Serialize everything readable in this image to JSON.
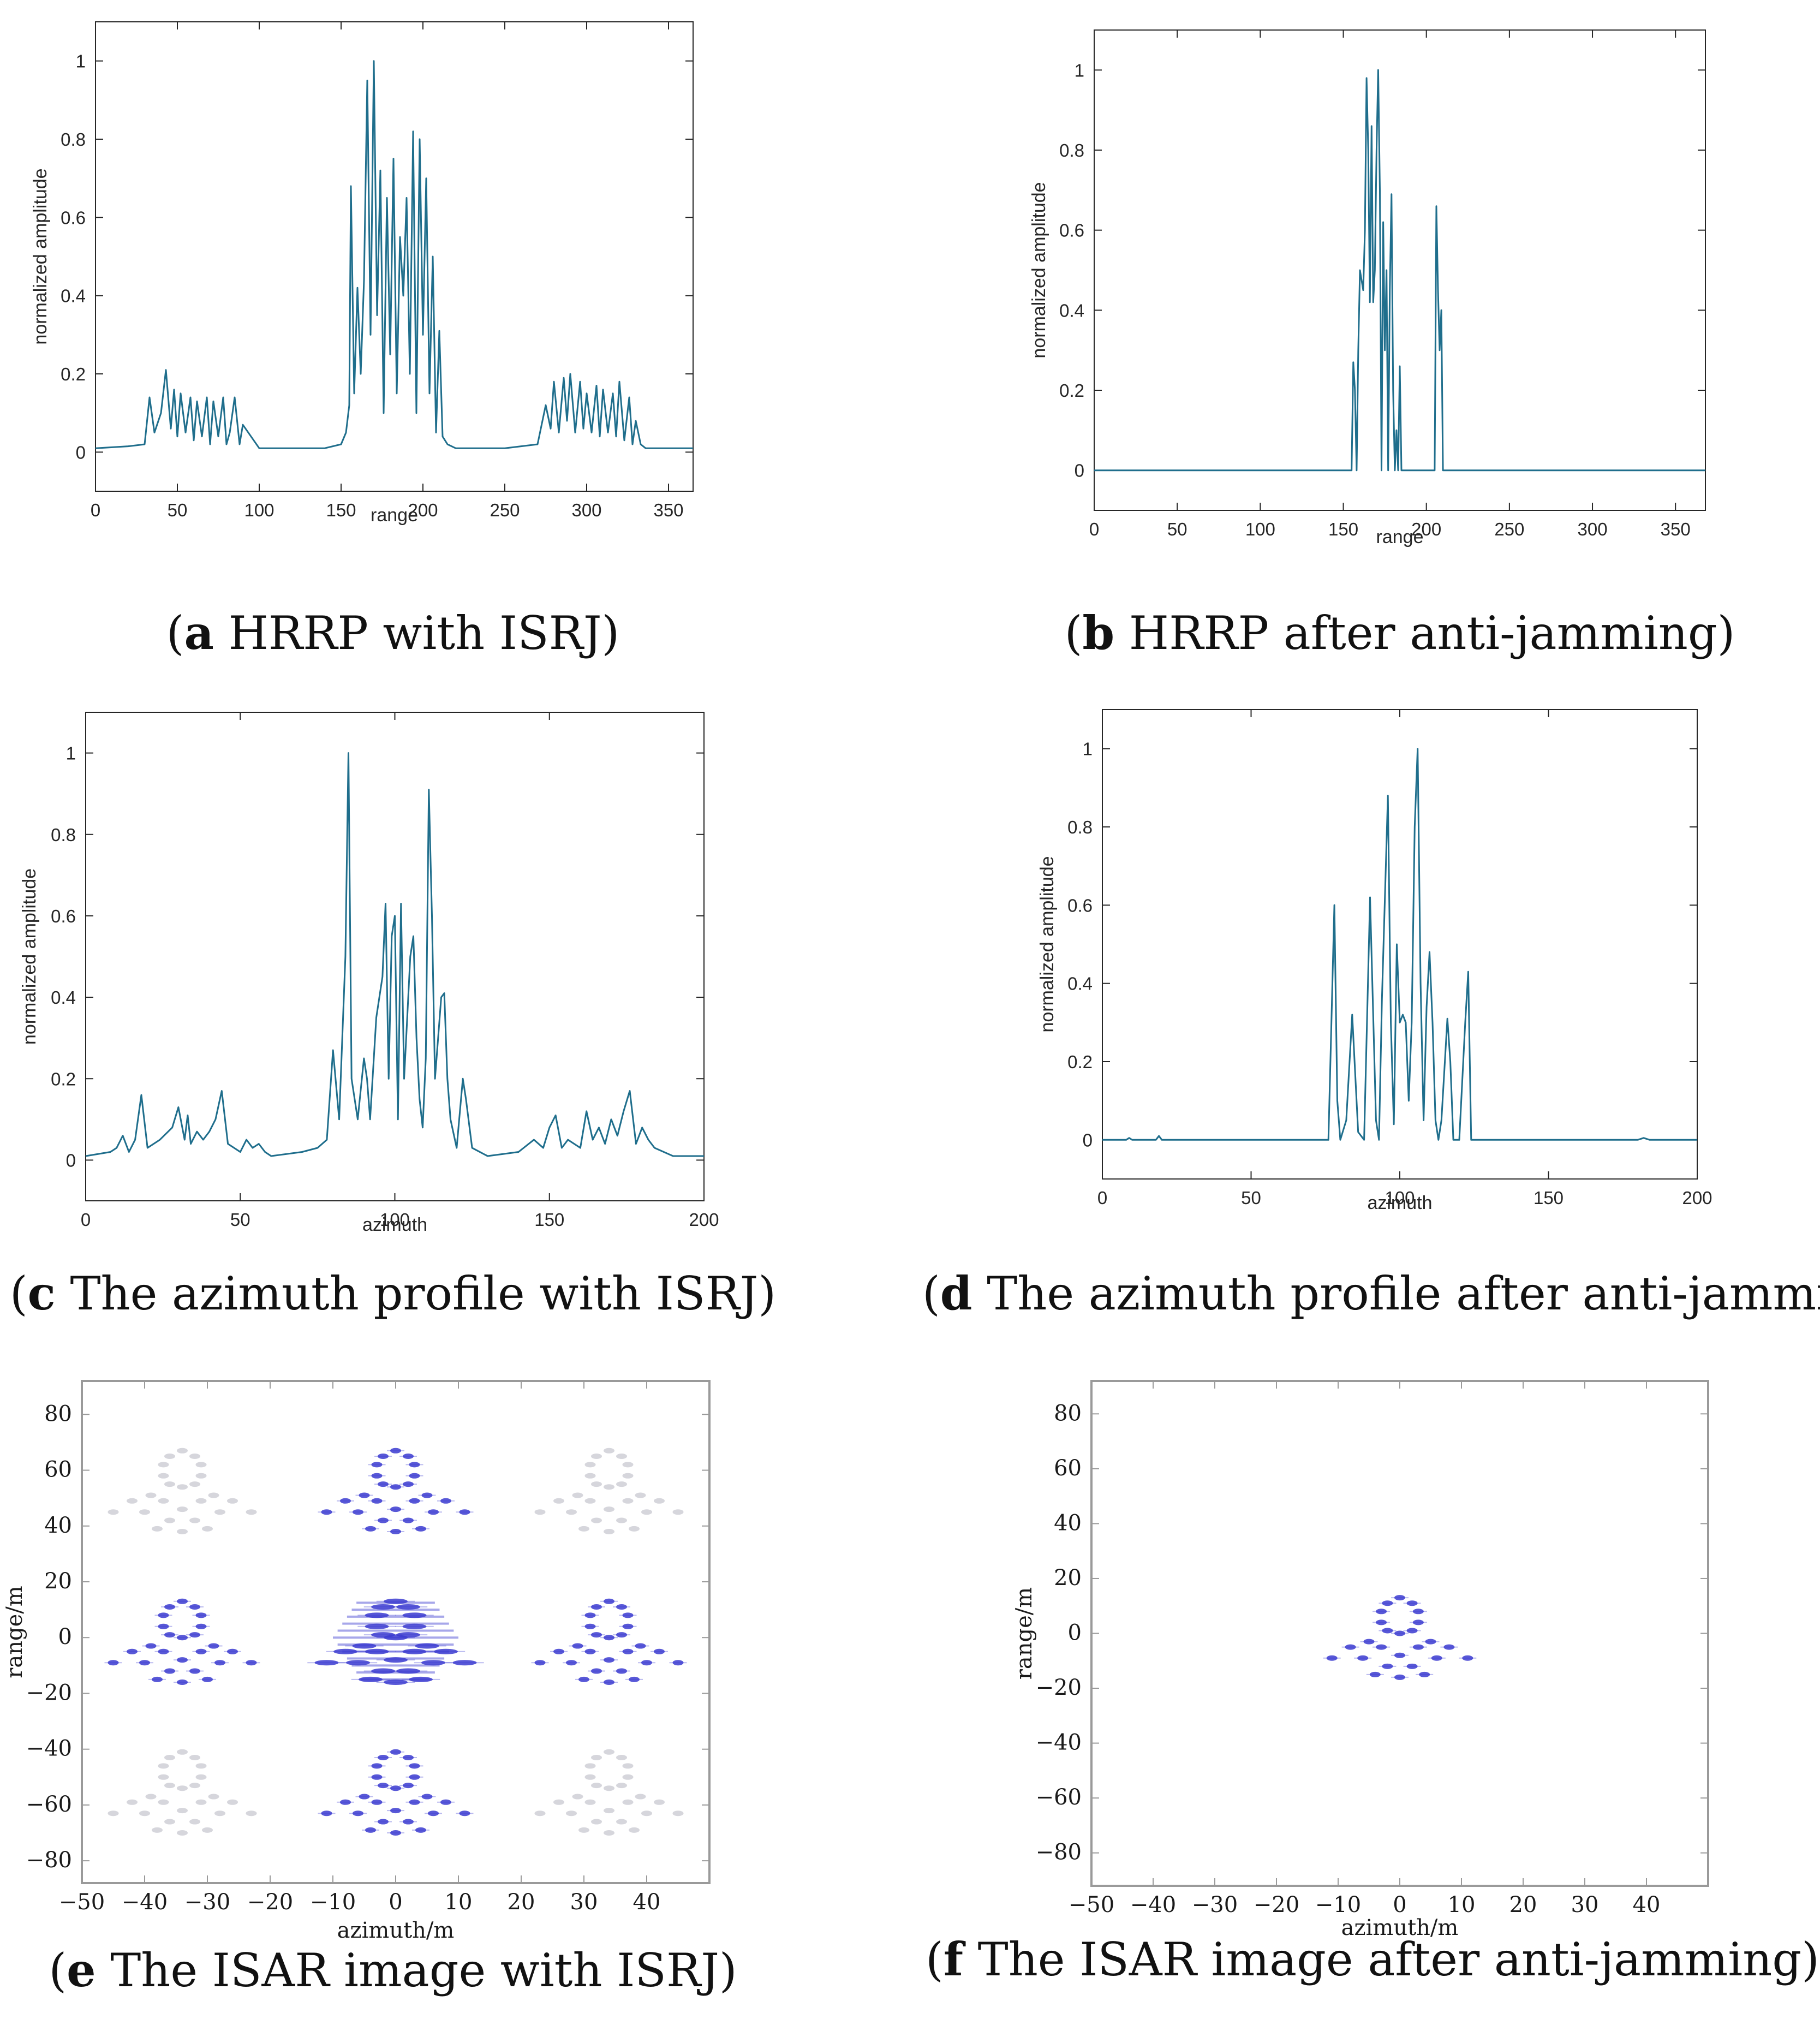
{
  "figure": {
    "captions": [
      {
        "letter": "a",
        "text": " HRRP with ISRJ"
      },
      {
        "letter": "b",
        "text": " HRRP after anti-jamming"
      },
      {
        "letter": "c",
        "text": " The azimuth profile with ISRJ"
      },
      {
        "letter": "d",
        "text": " The azimuth profile after anti-jamming"
      },
      {
        "letter": "e",
        "text": " The ISAR image with ISRJ"
      },
      {
        "letter": "f",
        "text": " The ISAR image after anti-jamming"
      }
    ]
  },
  "chart_data": [
    {
      "id": "a",
      "type": "line",
      "xlabel": "range",
      "ylabel": "normalized amplitude",
      "xlim": [
        0,
        365
      ],
      "ylim": [
        -0.1,
        1.1
      ],
      "xticks": [
        0,
        50,
        100,
        150,
        200,
        250,
        300,
        350
      ],
      "xtick_labels": [
        "0",
        "50",
        "100",
        "150",
        "200",
        "250",
        "300",
        "350"
      ],
      "yticks": [
        0,
        0.2,
        0.4,
        0.6,
        0.8,
        1
      ],
      "ytick_labels": [
        "0",
        "0.2",
        "0.4",
        "0.6",
        "0.8",
        "1"
      ],
      "color": "#1f6e8c",
      "series": [
        {
          "name": "HRRP with ISRJ",
          "x": [
            0,
            20,
            30,
            33,
            36,
            40,
            43,
            46,
            48,
            50,
            52,
            55,
            58,
            60,
            62,
            65,
            68,
            70,
            72,
            75,
            78,
            80,
            82,
            85,
            88,
            90,
            100,
            120,
            140,
            150,
            153,
            155,
            156,
            158,
            160,
            162,
            164,
            166,
            168,
            170,
            172,
            174,
            176,
            178,
            180,
            182,
            184,
            186,
            188,
            190,
            192,
            194,
            196,
            198,
            200,
            202,
            204,
            206,
            208,
            210,
            212,
            215,
            220,
            250,
            270,
            275,
            278,
            280,
            283,
            286,
            288,
            290,
            293,
            296,
            298,
            300,
            303,
            306,
            308,
            310,
            313,
            316,
            318,
            320,
            323,
            326,
            328,
            330,
            333,
            336,
            340,
            365
          ],
          "y": [
            0.01,
            0.015,
            0.02,
            0.14,
            0.05,
            0.1,
            0.21,
            0.06,
            0.16,
            0.04,
            0.15,
            0.05,
            0.14,
            0.03,
            0.13,
            0.04,
            0.14,
            0.02,
            0.13,
            0.04,
            0.14,
            0.02,
            0.05,
            0.14,
            0.02,
            0.07,
            0.01,
            0.01,
            0.01,
            0.02,
            0.05,
            0.12,
            0.68,
            0.15,
            0.42,
            0.2,
            0.44,
            0.95,
            0.3,
            1.0,
            0.35,
            0.72,
            0.1,
            0.65,
            0.25,
            0.75,
            0.15,
            0.55,
            0.4,
            0.65,
            0.2,
            0.82,
            0.1,
            0.8,
            0.3,
            0.7,
            0.15,
            0.5,
            0.05,
            0.31,
            0.04,
            0.02,
            0.01,
            0.01,
            0.02,
            0.12,
            0.06,
            0.18,
            0.05,
            0.19,
            0.08,
            0.2,
            0.05,
            0.18,
            0.06,
            0.15,
            0.05,
            0.17,
            0.04,
            0.16,
            0.05,
            0.15,
            0.04,
            0.18,
            0.03,
            0.14,
            0.02,
            0.08,
            0.02,
            0.01,
            0.01,
            0.01
          ]
        }
      ]
    },
    {
      "id": "b",
      "type": "line",
      "xlabel": "range",
      "ylabel": "normalized amplitude",
      "xlim": [
        0,
        368
      ],
      "ylim": [
        -0.1,
        1.1
      ],
      "xticks": [
        0,
        50,
        100,
        150,
        200,
        250,
        300,
        350
      ],
      "xtick_labels": [
        "0",
        "50",
        "100",
        "150",
        "200",
        "250",
        "300",
        "350"
      ],
      "yticks": [
        0,
        0.2,
        0.4,
        0.6,
        0.8,
        1
      ],
      "ytick_labels": [
        "0",
        "0.2",
        "0.4",
        "0.6",
        "0.8",
        "1"
      ],
      "color": "#1f6e8c",
      "series": [
        {
          "name": "HRRP after anti-jamming",
          "x": [
            0,
            155,
            156,
            157,
            158,
            159,
            160,
            162,
            163,
            164,
            165,
            166,
            167,
            168,
            169,
            170,
            171,
            172,
            173,
            174,
            175,
            176,
            177,
            178,
            179,
            180,
            181,
            182,
            183,
            184,
            185,
            186,
            187,
            188,
            189,
            190,
            205,
            206,
            207,
            208,
            209,
            210,
            211,
            212,
            368
          ],
          "y": [
            0,
            0,
            0.27,
            0.2,
            0,
            0.3,
            0.5,
            0.45,
            0.6,
            0.98,
            0.8,
            0.42,
            0.86,
            0.42,
            0.5,
            0.8,
            1.0,
            0.7,
            0,
            0.62,
            0.3,
            0.5,
            0,
            0.45,
            0.69,
            0.2,
            0,
            0.1,
            0,
            0.26,
            0,
            0,
            0,
            0,
            0,
            0,
            0,
            0.66,
            0.45,
            0.3,
            0.4,
            0,
            0,
            0,
            0
          ]
        }
      ]
    },
    {
      "id": "c",
      "type": "line",
      "xlabel": "azimuth",
      "ylabel": "normalized amplitude",
      "xlim": [
        0,
        200
      ],
      "ylim": [
        -0.1,
        1.1
      ],
      "xticks": [
        0,
        50,
        100,
        150,
        200
      ],
      "xtick_labels": [
        "0",
        "50",
        "100",
        "150",
        "200"
      ],
      "yticks": [
        0,
        0.2,
        0.4,
        0.6,
        0.8,
        1
      ],
      "ytick_labels": [
        "0",
        "0.2",
        "0.4",
        "0.6",
        "0.8",
        "1"
      ],
      "color": "#1f6e8c",
      "series": [
        {
          "name": "azimuth profile with ISRJ",
          "x": [
            0,
            8,
            10,
            12,
            14,
            16,
            18,
            20,
            24,
            28,
            30,
            32,
            33,
            34,
            36,
            38,
            40,
            42,
            44,
            46,
            48,
            50,
            52,
            54,
            56,
            58,
            60,
            70,
            75,
            78,
            80,
            82,
            84,
            85,
            86,
            88,
            90,
            91,
            92,
            94,
            96,
            97,
            98,
            99,
            100,
            101,
            102,
            103,
            104,
            105,
            106,
            107,
            108,
            109,
            110,
            111,
            112,
            113,
            114,
            115,
            116,
            117,
            118,
            120,
            122,
            123,
            125,
            130,
            140,
            145,
            148,
            150,
            152,
            154,
            156,
            160,
            162,
            164,
            166,
            168,
            170,
            172,
            174,
            176,
            178,
            180,
            182,
            184,
            190,
            200
          ],
          "y": [
            0.01,
            0.02,
            0.03,
            0.06,
            0.02,
            0.05,
            0.16,
            0.03,
            0.05,
            0.08,
            0.13,
            0.05,
            0.11,
            0.04,
            0.07,
            0.05,
            0.07,
            0.1,
            0.17,
            0.04,
            0.03,
            0.02,
            0.05,
            0.03,
            0.04,
            0.02,
            0.01,
            0.02,
            0.03,
            0.05,
            0.27,
            0.1,
            0.5,
            1.0,
            0.2,
            0.1,
            0.25,
            0.2,
            0.1,
            0.35,
            0.45,
            0.63,
            0.2,
            0.55,
            0.6,
            0.1,
            0.63,
            0.2,
            0.35,
            0.5,
            0.55,
            0.3,
            0.15,
            0.08,
            0.25,
            0.91,
            0.6,
            0.2,
            0.3,
            0.4,
            0.41,
            0.2,
            0.1,
            0.03,
            0.2,
            0.15,
            0.03,
            0.01,
            0.02,
            0.05,
            0.03,
            0.08,
            0.11,
            0.03,
            0.05,
            0.03,
            0.12,
            0.05,
            0.08,
            0.04,
            0.1,
            0.06,
            0.12,
            0.17,
            0.04,
            0.08,
            0.05,
            0.03,
            0.01,
            0.01
          ]
        }
      ]
    },
    {
      "id": "d",
      "type": "line",
      "xlabel": "azimuth",
      "ylabel": "normalized amplitude",
      "xlim": [
        0,
        200
      ],
      "ylim": [
        -0.1,
        1.1
      ],
      "xticks": [
        0,
        50,
        100,
        150,
        200
      ],
      "xtick_labels": [
        "0",
        "50",
        "100",
        "150",
        "200"
      ],
      "yticks": [
        0,
        0.2,
        0.4,
        0.6,
        0.8,
        1
      ],
      "ytick_labels": [
        "0",
        "0.2",
        "0.4",
        "0.6",
        "0.8",
        "1"
      ],
      "color": "#1f6e8c",
      "series": [
        {
          "name": "azimuth profile after anti-jamming",
          "x": [
            0,
            8,
            9,
            10,
            18,
            19,
            20,
            76,
            77,
            78,
            79,
            80,
            82,
            84,
            86,
            88,
            90,
            92,
            93,
            94,
            96,
            97,
            98,
            99,
            100,
            101,
            102,
            103,
            104,
            105,
            106,
            107,
            108,
            109,
            110,
            111,
            112,
            113,
            114,
            116,
            117,
            118,
            120,
            122,
            123,
            124,
            180,
            182,
            184,
            200
          ],
          "y": [
            0,
            0,
            0.005,
            0,
            0,
            0.01,
            0,
            0,
            0.3,
            0.6,
            0.1,
            0,
            0.05,
            0.32,
            0.02,
            0,
            0.62,
            0.05,
            0,
            0.36,
            0.88,
            0.3,
            0.04,
            0.5,
            0.3,
            0.32,
            0.3,
            0.1,
            0.3,
            0.8,
            1.0,
            0.4,
            0.05,
            0.34,
            0.48,
            0.3,
            0.05,
            0,
            0.05,
            0.31,
            0.2,
            0,
            0,
            0.3,
            0.43,
            0,
            0,
            0.005,
            0,
            0
          ]
        }
      ]
    },
    {
      "id": "e",
      "type": "scatter",
      "xlabel": "azimuth/m",
      "ylabel": "range/m",
      "xlim": [
        -50,
        50
      ],
      "ylim": [
        -88,
        92
      ],
      "xticks": [
        -50,
        -40,
        -30,
        -20,
        -10,
        0,
        10,
        20,
        30,
        40
      ],
      "xtick_labels": [
        "−50",
        "−40",
        "−30",
        "−20",
        "−10",
        "0",
        "10",
        "20",
        "30",
        "40"
      ],
      "yticks": [
        80,
        60,
        40,
        20,
        0,
        -20,
        -40,
        -60,
        -80
      ],
      "ytick_labels": [
        "80",
        "60",
        "40",
        "20",
        "0",
        "−20",
        "−40",
        "−60",
        "−80"
      ],
      "target_offsets": [
        {
          "dx": -34,
          "dy": 54,
          "intensity": 0.25
        },
        {
          "dx": 0,
          "dy": 54,
          "intensity": 0.85
        },
        {
          "dx": 34,
          "dy": 54,
          "intensity": 0.25
        },
        {
          "dx": -34,
          "dy": 0,
          "intensity": 0.8
        },
        {
          "dx": 0,
          "dy": 0,
          "intensity": 1.0
        },
        {
          "dx": 34,
          "dy": 0,
          "intensity": 0.8
        },
        {
          "dx": -34,
          "dy": -54,
          "intensity": 0.25
        },
        {
          "dx": 0,
          "dy": -54,
          "intensity": 0.85
        },
        {
          "dx": 34,
          "dy": -54,
          "intensity": 0.25
        }
      ],
      "scatterers": [
        [
          0,
          13
        ],
        [
          -2,
          11
        ],
        [
          2,
          11
        ],
        [
          -3,
          8
        ],
        [
          3,
          8
        ],
        [
          -3,
          4
        ],
        [
          3,
          4
        ],
        [
          -2,
          1
        ],
        [
          2,
          1
        ],
        [
          0,
          0
        ],
        [
          -5,
          -3
        ],
        [
          5,
          -3
        ],
        [
          -8,
          -5
        ],
        [
          8,
          -5
        ],
        [
          -11,
          -9
        ],
        [
          11,
          -9
        ],
        [
          -3,
          -5
        ],
        [
          3,
          -5
        ],
        [
          0,
          -8
        ],
        [
          -6,
          -9
        ],
        [
          6,
          -9
        ],
        [
          -2,
          -12
        ],
        [
          2,
          -12
        ],
        [
          -4,
          -15
        ],
        [
          4,
          -15
        ],
        [
          0,
          -16
        ]
      ]
    },
    {
      "id": "f",
      "type": "scatter",
      "xlabel": "azimuth/m",
      "ylabel": "range/m",
      "xlim": [
        -50,
        50
      ],
      "ylim": [
        -92,
        92
      ],
      "xticks": [
        -50,
        -40,
        -30,
        -20,
        -10,
        0,
        10,
        20,
        30,
        40
      ],
      "xtick_labels": [
        "−50",
        "−40",
        "−30",
        "−20",
        "−10",
        "0",
        "10",
        "20",
        "30",
        "40"
      ],
      "yticks": [
        80,
        60,
        40,
        20,
        0,
        -20,
        -40,
        -60,
        -80
      ],
      "ytick_labels": [
        "80",
        "60",
        "40",
        "20",
        "0",
        "−20",
        "−40",
        "−60",
        "−80"
      ],
      "scatterers": [
        [
          0,
          13
        ],
        [
          -2,
          11
        ],
        [
          2,
          11
        ],
        [
          -3,
          8
        ],
        [
          3,
          8
        ],
        [
          -3,
          4
        ],
        [
          3,
          4
        ],
        [
          -2,
          1
        ],
        [
          2,
          1
        ],
        [
          0,
          0
        ],
        [
          -5,
          -3
        ],
        [
          5,
          -3
        ],
        [
          -8,
          -5
        ],
        [
          8,
          -5
        ],
        [
          -11,
          -9
        ],
        [
          11,
          -9
        ],
        [
          -3,
          -5
        ],
        [
          3,
          -5
        ],
        [
          0,
          -8
        ],
        [
          -6,
          -9
        ],
        [
          6,
          -9
        ],
        [
          -2,
          -12
        ],
        [
          2,
          -12
        ],
        [
          -4,
          -15
        ],
        [
          4,
          -15
        ],
        [
          0,
          -16
        ]
      ]
    }
  ]
}
